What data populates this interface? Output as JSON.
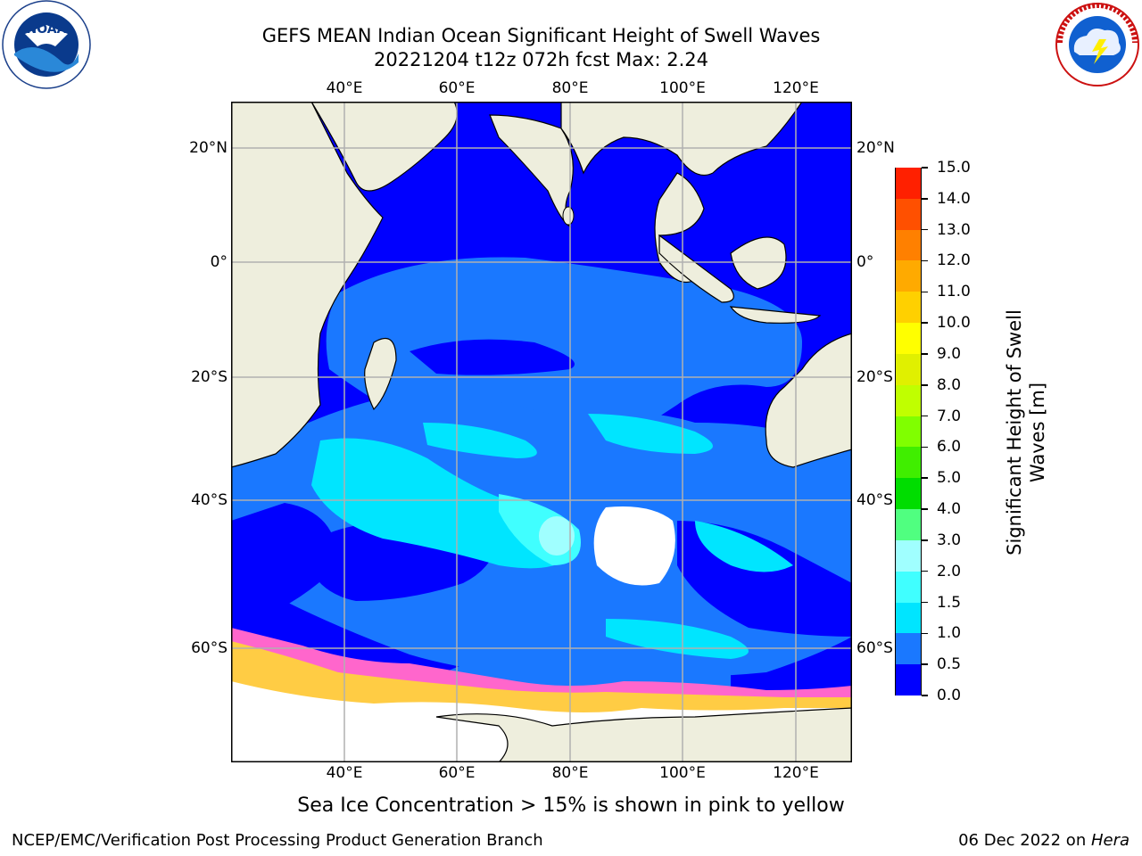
{
  "title": {
    "line1": "GEFS MEAN Indian Ocean Significant Height of Swell Waves",
    "line2": "20221204 t12z 072h fcst   Max: 2.24"
  },
  "logos": {
    "left": "NOAA",
    "left_ring": "NATIONAL OCEANIC AND ATMOSPHERIC ADMINISTRATION · U.S. DEPARTMENT OF COMMERCE",
    "right_ring": "NATIONAL WEATHER SERVICE"
  },
  "map": {
    "lon_ticks": [
      "40°E",
      "60°E",
      "80°E",
      "100°E",
      "120°E"
    ],
    "lat_ticks": [
      "20°N",
      "0°",
      "20°S",
      "40°S",
      "60°S"
    ],
    "lon_range": [
      20,
      130
    ],
    "lat_range": [
      -72,
      28
    ],
    "grid": true,
    "ocean_color": "#0000ff",
    "land_color": "#eeeedd",
    "regions_swell_m": [
      {
        "area": "northern Indian Ocean",
        "band": "0.0-0.5"
      },
      {
        "area": "equatorial band 50E-100E",
        "band": "0.5-1.0"
      },
      {
        "area": "southwest Indian Ocean 30E-75E, 25S-50S",
        "band": "1.0-1.5"
      },
      {
        "area": "near 77E 45S (max)",
        "band": "2.0-2.5"
      }
    ]
  },
  "colorbar": {
    "label": "Significant Height of Swell Waves [m]",
    "ticks": [
      "0.0",
      "0.5",
      "1.0",
      "1.5",
      "2.0",
      "3.0",
      "4.0",
      "5.0",
      "6.0",
      "7.0",
      "8.0",
      "9.0",
      "10.0",
      "11.0",
      "12.0",
      "13.0",
      "14.0",
      "15.0"
    ],
    "colors": [
      "#0000ff",
      "#1a78ff",
      "#00e5ff",
      "#40ffff",
      "#a0ffff",
      "#50ff80",
      "#00dd00",
      "#40ee00",
      "#80ff00",
      "#c0ff00",
      "#e0f000",
      "#ffff00",
      "#ffd000",
      "#ffaa00",
      "#ff8000",
      "#ff5000",
      "#ff2000",
      "#ff0000"
    ]
  },
  "subtitle": "Sea Ice Concentration > 15% is shown in pink to yellow",
  "footer": {
    "left": "NCEP/EMC/Verification Post Processing Product Generation Branch",
    "right_date": "06 Dec 2022 on ",
    "right_machine": "Hera"
  }
}
